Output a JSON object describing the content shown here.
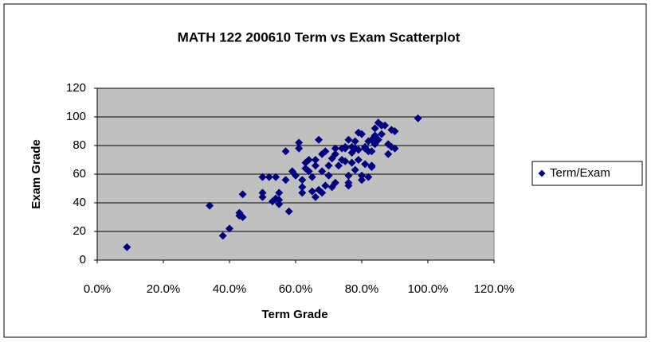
{
  "chart_data": {
    "type": "scatter",
    "title": "MATH 122 200610 Term vs Exam Scatterplot",
    "xlabel": "Term Grade",
    "ylabel": "Exam Grade",
    "xlim": [
      0,
      120
    ],
    "xticks": [
      {
        "value": 0,
        "label": "0.0%"
      },
      {
        "value": 20,
        "label": "20.0%"
      },
      {
        "value": 40,
        "label": "40.0%"
      },
      {
        "value": 60,
        "label": "60.0%"
      },
      {
        "value": 80,
        "label": "80.0%"
      },
      {
        "value": 100,
        "label": "100.0%"
      },
      {
        "value": 120,
        "label": "120.0%"
      }
    ],
    "ylim": [
      0,
      120
    ],
    "yticks": [
      0,
      20,
      40,
      60,
      80,
      100,
      120
    ],
    "grid": true,
    "legend": "right",
    "series": [
      {
        "name": "Term/Exam",
        "color": "#000080",
        "x": [
          9,
          34,
          38,
          40,
          43,
          43,
          44,
          44,
          50,
          50,
          50,
          52,
          54,
          53,
          54,
          55,
          55,
          55,
          57,
          57,
          58,
          59,
          60,
          61,
          61,
          62,
          62,
          62,
          63,
          63,
          64,
          64,
          65,
          65,
          66,
          66,
          66,
          67,
          67,
          68,
          68,
          68,
          69,
          69,
          70,
          70,
          71,
          71,
          72,
          72,
          72,
          73,
          74,
          74,
          75,
          75,
          75,
          76,
          76,
          76,
          76,
          77,
          77,
          77,
          78,
          78,
          78,
          79,
          79,
          79,
          80,
          80,
          80,
          81,
          81,
          81,
          82,
          82,
          82,
          83,
          83,
          83,
          83,
          84,
          84,
          84,
          85,
          85,
          86,
          86,
          87,
          88,
          88,
          89,
          89,
          90,
          90,
          97
        ],
        "values": [
          9,
          38,
          17,
          22,
          31,
          33,
          30,
          46,
          58,
          47,
          44,
          58,
          58,
          41,
          43,
          39,
          47,
          42,
          76,
          56,
          34,
          62,
          59,
          82,
          78,
          56,
          51,
          47,
          64,
          68,
          70,
          62,
          58,
          48,
          66,
          70,
          44,
          49,
          84,
          47,
          74,
          62,
          76,
          52,
          59,
          66,
          51,
          71,
          78,
          54,
          74,
          66,
          78,
          70,
          79,
          69,
          78,
          59,
          52,
          84,
          54,
          75,
          68,
          79,
          83,
          63,
          78,
          70,
          77,
          89,
          59,
          56,
          88,
          78,
          67,
          79,
          58,
          76,
          83,
          65,
          76,
          84,
          66,
          87,
          92,
          81,
          84,
          96,
          88,
          94,
          94,
          81,
          74,
          91,
          79,
          78,
          90,
          99
        ]
      }
    ]
  }
}
